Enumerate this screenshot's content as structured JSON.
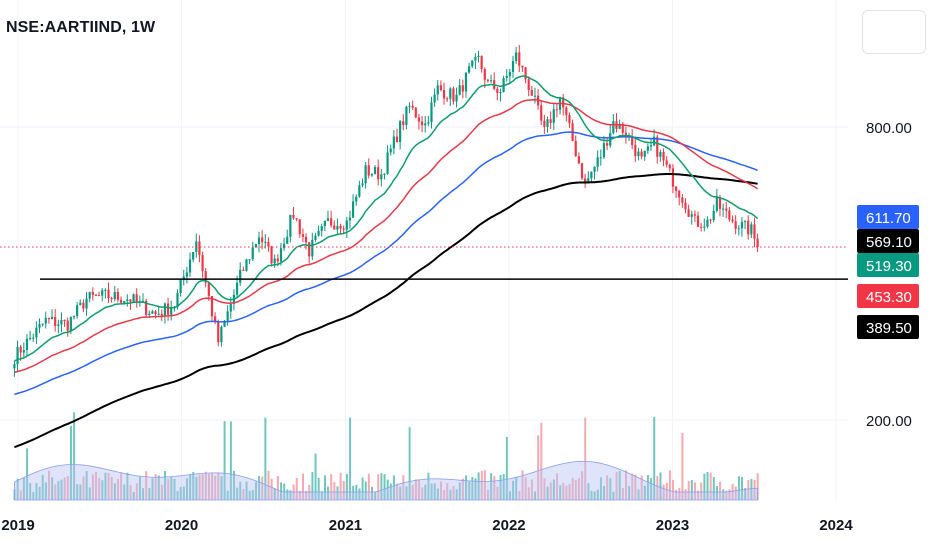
{
  "header": {
    "symbol": "NSE:AARTIIND, 1W"
  },
  "colors": {
    "up": "#089981",
    "down": "#f23645",
    "ema_green": "#0a9f6b",
    "ema_red": "#e8394a",
    "ema_blue": "#2962ff",
    "ema_black": "#000000",
    "support": "#000000",
    "last_price_line": "#f23645",
    "grid": "#f0f3fa"
  },
  "chart_data": {
    "type": "candlestick",
    "symbol": "NSE:AARTIIND",
    "interval": "1W",
    "y_scale": "log",
    "y_ticks": [
      "800.00",
      "200.00"
    ],
    "x_ticks": [
      "2019",
      "2020",
      "2021",
      "2022",
      "2023",
      "2024"
    ],
    "price_labels": [
      {
        "text": "611.70",
        "bg": "#2962ff",
        "fg": "#ffffff"
      },
      {
        "text": "569.10",
        "bg": "#000000",
        "fg": "#ffffff"
      },
      {
        "text": "519.30",
        "bg": "#089981",
        "fg": "#ffffff"
      },
      {
        "text": "453.30",
        "bg": "#f23645",
        "fg": "#ffffff"
      },
      {
        "text": "389.50",
        "bg": "#000000",
        "fg": "#ffffff"
      }
    ],
    "last_price": 453.3,
    "support_level": 389.5,
    "price_anchors": [
      [
        "2018-12-24",
        270
      ],
      [
        "2019-03-04",
        320
      ],
      [
        "2019-04-22",
        315
      ],
      [
        "2019-06-03",
        355
      ],
      [
        "2019-07-15",
        360
      ],
      [
        "2019-09-09",
        355
      ],
      [
        "2019-11-04",
        330
      ],
      [
        "2019-12-16",
        345
      ],
      [
        "2020-02-03",
        470
      ],
      [
        "2020-03-23",
        290
      ],
      [
        "2020-05-11",
        395
      ],
      [
        "2020-06-22",
        480
      ],
      [
        "2020-07-27",
        420
      ],
      [
        "2020-09-07",
        530
      ],
      [
        "2020-10-12",
        445
      ],
      [
        "2020-11-23",
        510
      ],
      [
        "2021-01-04",
        510
      ],
      [
        "2021-02-15",
        650
      ],
      [
        "2021-03-22",
        640
      ],
      [
        "2021-05-03",
        800
      ],
      [
        "2021-05-24",
        880
      ],
      [
        "2021-06-28",
        810
      ],
      [
        "2021-07-26",
        960
      ],
      [
        "2021-09-06",
        920
      ],
      [
        "2021-10-04",
        1040
      ],
      [
        "2021-10-25",
        1100
      ],
      [
        "2021-11-15",
        980
      ],
      [
        "2021-12-13",
        950
      ],
      [
        "2022-01-17",
        1120
      ],
      [
        "2022-02-21",
        940
      ],
      [
        "2022-03-21",
        780
      ],
      [
        "2022-04-25",
        920
      ],
      [
        "2022-05-23",
        750
      ],
      [
        "2022-06-20",
        610
      ],
      [
        "2022-07-25",
        700
      ],
      [
        "2022-08-22",
        820
      ],
      [
        "2022-09-19",
        780
      ],
      [
        "2022-10-24",
        680
      ],
      [
        "2022-11-21",
        740
      ],
      [
        "2022-12-26",
        640
      ],
      [
        "2023-01-23",
        575
      ],
      [
        "2023-02-20",
        510
      ],
      [
        "2023-03-20",
        510
      ],
      [
        "2023-04-10",
        555
      ],
      [
        "2023-05-08",
        520
      ],
      [
        "2023-06-05",
        500
      ],
      [
        "2023-06-26",
        490
      ],
      [
        "2023-07-10",
        453.3
      ]
    ],
    "series": [
      {
        "name": "EMA green",
        "period": 20,
        "color": "#0a9f6b",
        "last": 519.3
      },
      {
        "name": "EMA red",
        "period": 50,
        "color": "#e8394a"
      },
      {
        "name": "EMA blue",
        "period": 100,
        "color": "#2962ff",
        "last": 611.7
      },
      {
        "name": "EMA black",
        "period": 200,
        "color": "#000000",
        "last": 569.1
      }
    ],
    "volume": {
      "ma_fill": "#b7c4f5",
      "up": "#6fc7bd",
      "down": "#f7a8b0"
    },
    "grid": true
  }
}
